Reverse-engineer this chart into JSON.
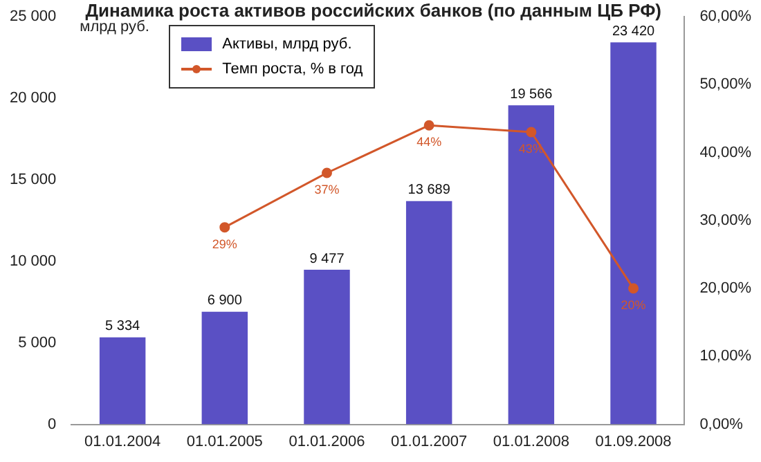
{
  "chart_data": {
    "type": "bar",
    "title": "Динамика роста активов российских банков (по данным ЦБ РФ)",
    "ylabel": "млрд руб.",
    "categories": [
      "01.01.2004",
      "01.01.2005",
      "01.01.2006",
      "01.01.2007",
      "01.01.2008",
      "01.09.2008"
    ],
    "series": [
      {
        "name": "Активы, млрд руб.",
        "color": "#5a50c4",
        "values": [
          5334,
          6900,
          9477,
          13689,
          19566,
          23420
        ],
        "value_labels": [
          "5 334",
          "6 900",
          "9 477",
          "13 689",
          "19 566",
          "23 420"
        ]
      },
      {
        "name": "Темп роста, % в год",
        "type": "line",
        "axis": "y2",
        "color": "#d2572a",
        "marker": "circle",
        "values": [
          null,
          29,
          37,
          44,
          43,
          20
        ],
        "value_labels": [
          null,
          "29%",
          "37%",
          "44%",
          "43%",
          "20%"
        ]
      }
    ],
    "ylim": [
      0,
      25000
    ],
    "yticks": [
      0,
      {
        "value": 5000,
        "label": "5 000"
      },
      {
        "value": 10000,
        "label": "10 000"
      },
      {
        "value": 15000,
        "label": "15 000"
      },
      {
        "value": 20000,
        "label": "20 000"
      },
      {
        "value": 25000,
        "label": "25 000"
      }
    ],
    "y2lim": [
      0,
      60
    ],
    "y2ticks": [
      {
        "value": 0,
        "label": "0,00%"
      },
      {
        "value": 10,
        "label": "10,00%"
      },
      {
        "value": 20,
        "label": "20,00%"
      },
      {
        "value": 30,
        "label": "30,00%"
      },
      {
        "value": 40,
        "label": "40,00%"
      },
      {
        "value": 50,
        "label": "50,00%"
      },
      {
        "value": 60,
        "label": "60,00%"
      }
    ],
    "grid": false,
    "legend": "top left"
  }
}
